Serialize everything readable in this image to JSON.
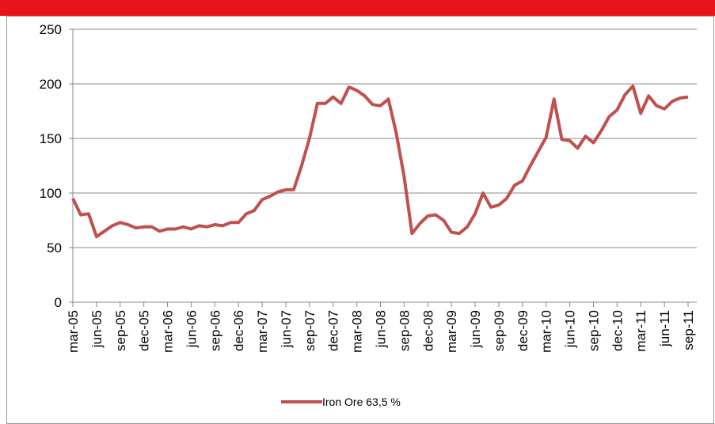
{
  "chart_data": {
    "type": "line",
    "categories": [
      "mar-05",
      null,
      null,
      "jun-05",
      null,
      null,
      "sep-05",
      null,
      null,
      "dec-05",
      null,
      null,
      "mar-06",
      null,
      null,
      "jun-06",
      null,
      null,
      "sep-06",
      null,
      null,
      "dec-06",
      null,
      null,
      "mar-07",
      null,
      null,
      "jun-07",
      null,
      null,
      "sep-07",
      null,
      null,
      "dec-07",
      null,
      null,
      "mar-08",
      null,
      null,
      "jun-08",
      null,
      null,
      "sep-08",
      null,
      null,
      "dec-08",
      null,
      null,
      "mar-09",
      null,
      null,
      "jun-09",
      null,
      null,
      "sep-09",
      null,
      null,
      "dec-09",
      null,
      null,
      "mar-10",
      null,
      null,
      "jun-10",
      null,
      null,
      "sep-10",
      null,
      null,
      "dec-10",
      null,
      null,
      "mar-11",
      null,
      null,
      "jun-11",
      null,
      null,
      "sep-11"
    ],
    "series": [
      {
        "name": "Iron Ore 63,5 %",
        "color": "#c0504d",
        "values": [
          95,
          80,
          81,
          60,
          65,
          70,
          73,
          71,
          68,
          69,
          69,
          65,
          67,
          67,
          69,
          67,
          70,
          69,
          71,
          70,
          73,
          73,
          81,
          84,
          94,
          97,
          101,
          103,
          103,
          125,
          150,
          182,
          182,
          188,
          182,
          197,
          194,
          189,
          181,
          180,
          186,
          155,
          115,
          63,
          72,
          79,
          80,
          75,
          64,
          63,
          69,
          81,
          100,
          87,
          89,
          95,
          107,
          111,
          125,
          138,
          151,
          186,
          149,
          148,
          141,
          152,
          146,
          157,
          170,
          176,
          190,
          198,
          173,
          189,
          180,
          177,
          184,
          187,
          188
        ]
      }
    ],
    "ylim": [
      0,
      250
    ],
    "yticks": [
      0,
      50,
      100,
      150,
      200,
      250
    ],
    "grid": true,
    "legend": "bottom"
  }
}
